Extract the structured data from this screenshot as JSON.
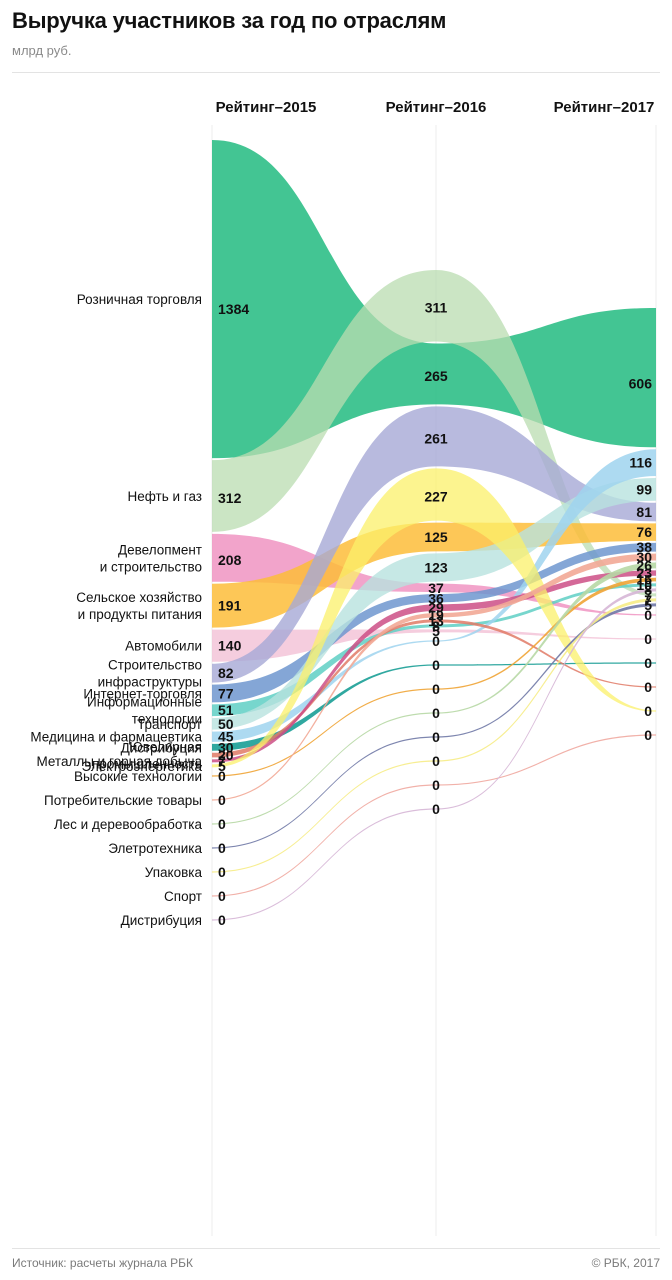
{
  "header": {
    "title": "Выручка участников за год по отраслям",
    "subtitle": "млрд руб."
  },
  "footer": {
    "source": "Источник: расчеты журнала РБК",
    "copyright": "© РБК, 2017"
  },
  "chart_data": {
    "type": "bump",
    "columns": [
      "Рейтинг–2015",
      "Рейтинг–2016",
      "Рейтинг–2017"
    ],
    "unit": "млрд руб.",
    "series": [
      {
        "name": "Розничная торговля",
        "label_lines": [
          "Розничная торговля"
        ],
        "values": [
          1384,
          265,
          606
        ],
        "color": "#2fbf87",
        "opacity": 0.9
      },
      {
        "name": "Нефть и газ",
        "label_lines": [
          "Нефть и газ"
        ],
        "values": [
          312,
          311,
          7
        ],
        "color": "#b9dcb0",
        "opacity": 0.75
      },
      {
        "name": "Девелопмент и строительство",
        "label_lines": [
          "Девелопмент",
          "и строительство"
        ],
        "values": [
          208,
          37,
          0
        ],
        "color": "#ee86b9",
        "opacity": 0.75
      },
      {
        "name": "Сельское хозяйство и продукты питания",
        "label_lines": [
          "Сельское хозяйство",
          "и продукты питания"
        ],
        "values": [
          191,
          125,
          76
        ],
        "color": "#fdbd3a",
        "opacity": 0.85
      },
      {
        "name": "Автомобили",
        "label_lines": [
          "Автомобили"
        ],
        "values": [
          140,
          5,
          0
        ],
        "color": "#f2c1d6",
        "opacity": 0.8
      },
      {
        "name": "Строительство инфраструктуры",
        "label_lines": [
          "Строительство",
          "инфраструктуры"
        ],
        "values": [
          82,
          261,
          81
        ],
        "color": "#a6a9d6",
        "opacity": 0.8
      },
      {
        "name": "Интернет-торговля",
        "label_lines": [
          "Интернет-торговля"
        ],
        "values": [
          77,
          36,
          38
        ],
        "color": "#6e96cf",
        "opacity": 0.85
      },
      {
        "name": "Информационные технологии",
        "label_lines": [
          "Информационные",
          "технологии"
        ],
        "values": [
          51,
          8,
          10
        ],
        "color": "#5fcfc4",
        "opacity": 0.85
      },
      {
        "name": "Транспорт",
        "label_lines": [
          "Транспорт"
        ],
        "values": [
          50,
          123,
          99
        ],
        "color": "#b8e2de",
        "opacity": 0.8
      },
      {
        "name": "Медицина и фармацевтика",
        "label_lines": [
          "Медицина и фармацевтика"
        ],
        "values": [
          45,
          0,
          116
        ],
        "color": "#9fd4ee",
        "opacity": 0.85
      },
      {
        "name": "Дистрибуция",
        "label_lines": [
          "Дистрибуция"
        ],
        "values": [
          30,
          0,
          0
        ],
        "color": "#1a9e96",
        "opacity": 0.9
      },
      {
        "name": "Ювелирная промышленность",
        "label_lines": [
          "Ювелирная",
          "промышленность"
        ],
        "values": [
          20,
          13,
          0
        ],
        "color": "#e07a66",
        "opacity": 0.85
      },
      {
        "name": "Металлы и горная добыча",
        "label_lines": [
          "Металлы и горная добыча"
        ],
        "values": [
          7,
          29,
          23
        ],
        "color": "#cc4f86",
        "opacity": 0.85
      },
      {
        "name": "Электроэнергетика",
        "label_lines": [
          "Электроэнергетика"
        ],
        "values": [
          5,
          227,
          0
        ],
        "color": "#fbf06a",
        "opacity": 0.75
      },
      {
        "name": "Высокие технологии",
        "label_lines": [
          "Высокие технологии"
        ],
        "values": [
          0,
          0,
          16
        ],
        "color": "#f0a435",
        "opacity": 0.9
      },
      {
        "name": "Потребительские товары",
        "label_lines": [
          "Потребительские товары"
        ],
        "values": [
          0,
          19,
          30
        ],
        "color": "#f2a996",
        "opacity": 0.9
      },
      {
        "name": "Лес и деревообработка",
        "label_lines": [
          "Лес и деревообработка"
        ],
        "values": [
          0,
          0,
          26
        ],
        "color": "#b7d8a5",
        "opacity": 0.9
      },
      {
        "name": "Элетротехника",
        "label_lines": [
          "Элетротехника"
        ],
        "values": [
          0,
          0,
          5
        ],
        "color": "#7079a6",
        "opacity": 0.9
      },
      {
        "name": "Упаковка",
        "label_lines": [
          "Упаковка"
        ],
        "values": [
          0,
          0,
          7
        ],
        "color": "#f6ec86",
        "opacity": 0.9
      },
      {
        "name": "Спорт",
        "label_lines": [
          "Спорт"
        ],
        "values": [
          0,
          0,
          0
        ],
        "color": "#f0a8a0",
        "opacity": 0.9
      },
      {
        "name": "Дистрибуция",
        "label_lines": [
          "Дистрибуция"
        ],
        "values": [
          0,
          0,
          8
        ],
        "color": "#d6b6d6",
        "opacity": 0.9
      }
    ]
  }
}
